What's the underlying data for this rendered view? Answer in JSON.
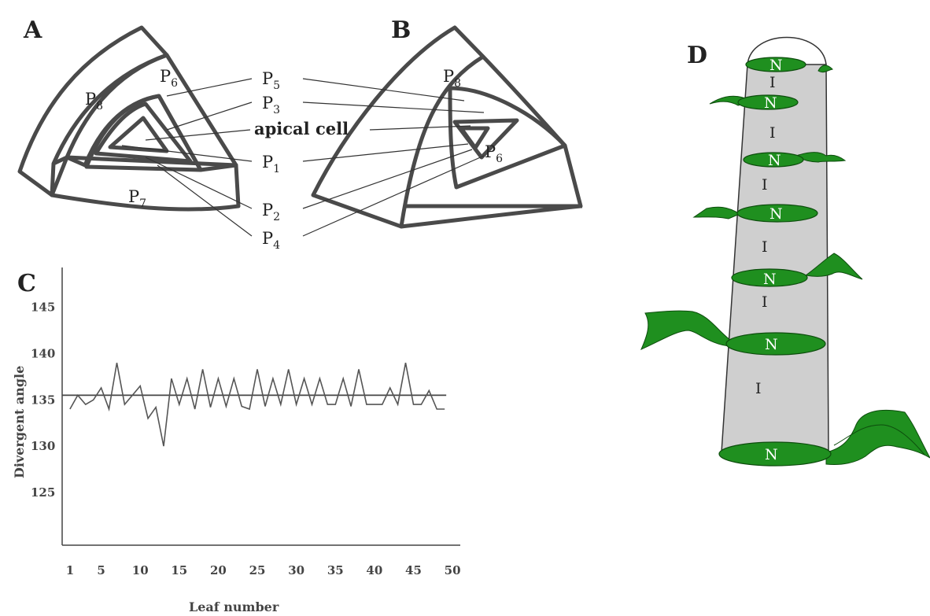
{
  "panels": {
    "a": "A",
    "b": "B",
    "c": "C",
    "d": "D"
  },
  "diagram_a": {
    "p8": "P8",
    "p6": "P6",
    "p7": "P7"
  },
  "diagram_b": {
    "p8": "P8",
    "p6": "P6"
  },
  "center_labels": {
    "p5": "P5",
    "p3": "P3",
    "apical": "apical cell",
    "p1": "P1",
    "p2": "P2",
    "p4": "P4"
  },
  "stem": {
    "node": "N",
    "internode": "I"
  },
  "chart_data": {
    "type": "line",
    "xlabel": "Leaf number",
    "ylabel": "Divergent angle",
    "x_ticks": [
      1,
      5,
      10,
      15,
      20,
      25,
      30,
      35,
      40,
      45,
      50
    ],
    "y_ticks": [
      125,
      130,
      135,
      140,
      145
    ],
    "xlim": [
      0,
      51
    ],
    "ylim": [
      119.3,
      149.3
    ],
    "reference_line": 135.5,
    "x": [
      1,
      2,
      3,
      4,
      5,
      6,
      7,
      8,
      9,
      10,
      11,
      12,
      13,
      14,
      15,
      16,
      17,
      18,
      19,
      20,
      21,
      22,
      23,
      24,
      25,
      26,
      27,
      28,
      29,
      30,
      31,
      32,
      33,
      34,
      35,
      36,
      37,
      38,
      39,
      40,
      41,
      42,
      43,
      44,
      45,
      46,
      47,
      48,
      49
    ],
    "values": [
      134,
      135.5,
      134.5,
      135,
      136.3,
      134,
      139,
      134.5,
      135.5,
      136.5,
      133,
      134.2,
      130,
      137.3,
      134.5,
      137.3,
      134,
      138.3,
      134.2,
      137.3,
      134.3,
      137.3,
      134.3,
      134,
      138.3,
      134.3,
      137.3,
      134.5,
      138.3,
      134.5,
      137.3,
      134.5,
      137.3,
      134.5,
      134.5,
      137.3,
      134.3,
      138.3,
      134.5,
      134.5,
      134.5,
      136.3,
      134.5,
      139,
      134.5,
      134.5,
      136,
      134,
      134
    ]
  }
}
